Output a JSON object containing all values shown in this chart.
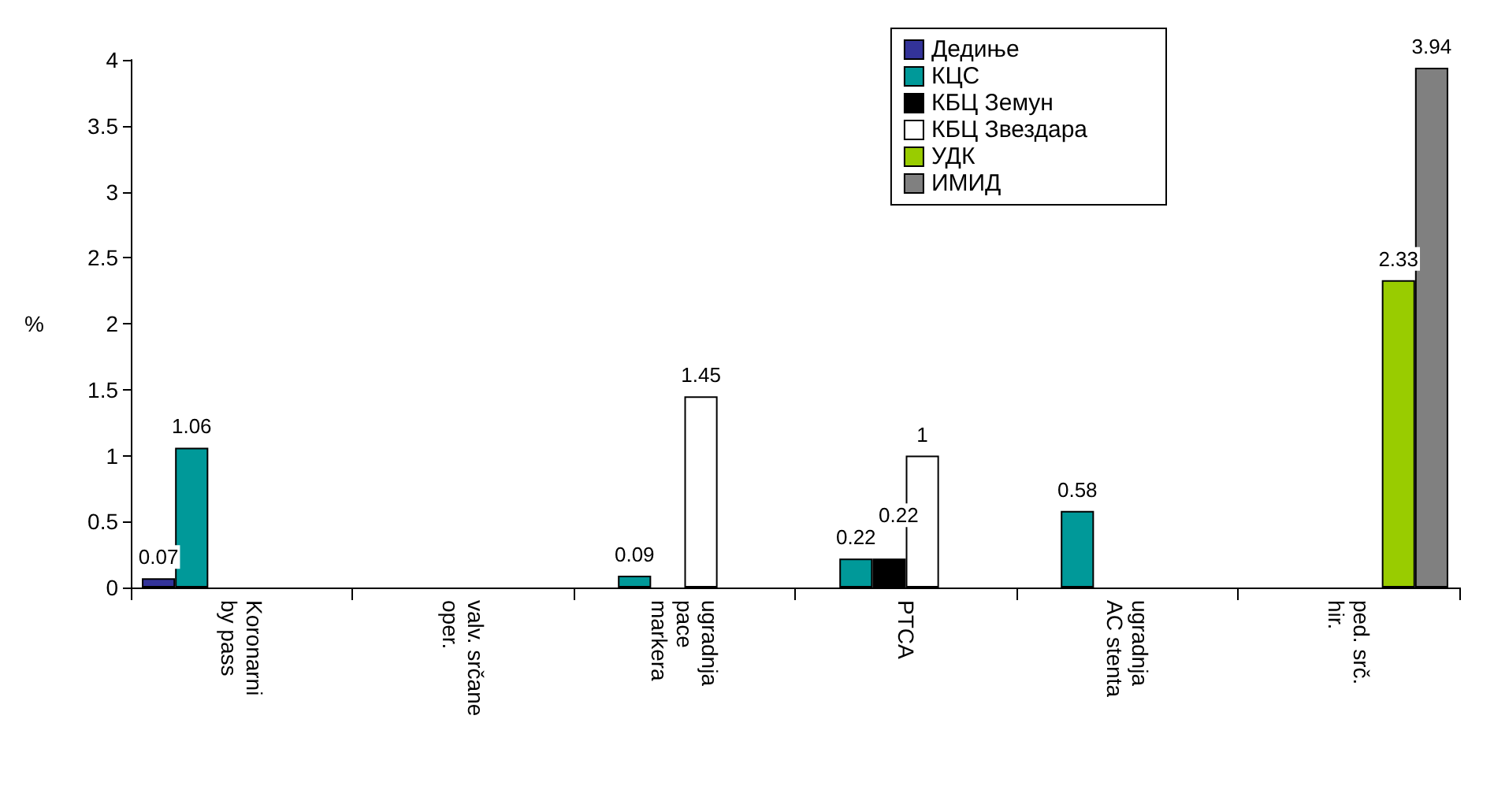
{
  "chart_data": {
    "type": "bar",
    "ylabel": "%",
    "categories": [
      "Koronarni\nby pass",
      "valv. srčane\noper.",
      "ugradnja\npace\nmarkera",
      "PTCA",
      "ugradnja\nAC stenta",
      "ped. srč.\nhir."
    ],
    "series": [
      {
        "name": "Дедиње",
        "color": "#333399",
        "values": [
          0.07,
          null,
          null,
          null,
          null,
          null
        ]
      },
      {
        "name": "КЦС",
        "color": "#009999",
        "values": [
          1.06,
          null,
          0.09,
          0.22,
          0.58,
          null
        ]
      },
      {
        "name": "КБЦ Земун",
        "color": "#000000",
        "values": [
          null,
          null,
          null,
          0.22,
          null,
          null
        ]
      },
      {
        "name": "КБЦ Звездара",
        "color": "#ffffff",
        "values": [
          null,
          null,
          1.45,
          1,
          null,
          null
        ]
      },
      {
        "name": "УДК",
        "color": "#99cc00",
        "values": [
          null,
          null,
          null,
          null,
          null,
          2.33
        ]
      },
      {
        "name": "ИМИД",
        "color": "#808080",
        "values": [
          null,
          null,
          null,
          null,
          null,
          3.94
        ]
      }
    ],
    "ylim": [
      0,
      4
    ],
    "yticks": [
      0,
      0.5,
      1,
      1.5,
      2,
      2.5,
      3,
      3.5,
      4
    ],
    "grid": false,
    "legend": "top right",
    "data_labels": true
  }
}
